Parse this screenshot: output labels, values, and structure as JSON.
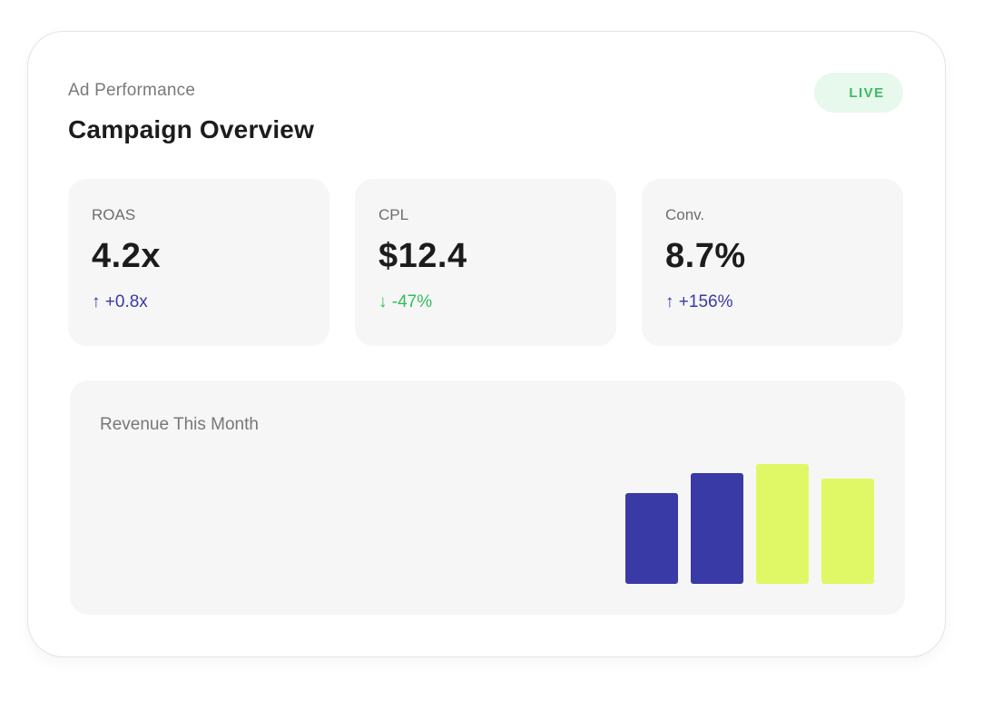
{
  "header": {
    "eyebrow": "Ad Performance",
    "title": "Campaign Overview",
    "status_badge": "LIVE"
  },
  "metrics": [
    {
      "label": "ROAS",
      "value": "4.2x",
      "delta": "↑ +0.8x",
      "trend": "up"
    },
    {
      "label": "CPL",
      "value": "$12.4",
      "delta": "↓ -47%",
      "trend": "down"
    },
    {
      "label": "Conv.",
      "value": "8.7%",
      "delta": "↑ +156%",
      "trend": "up"
    }
  ],
  "colors": {
    "accent_blue": "#3a3aa6",
    "accent_lime": "#e0f865",
    "live_green": "#3dba62",
    "positive_green": "#2fbf5a"
  },
  "revenue": {
    "title": "Revenue This Month"
  },
  "chart_data": {
    "type": "bar",
    "categories": [
      "",
      "",
      "",
      ""
    ],
    "values": [
      100,
      122,
      132,
      116
    ],
    "bar_colors": [
      "#3a3aa6",
      "#3a3aa6",
      "#e0f865",
      "#e0f865"
    ],
    "ylim": [
      0,
      140
    ],
    "grid": false,
    "title": "",
    "xlabel": "",
    "ylabel": ""
  }
}
